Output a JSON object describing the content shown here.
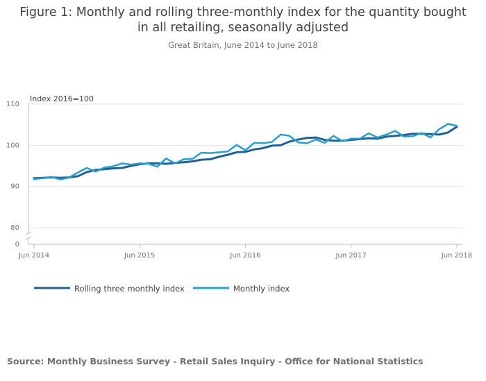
{
  "header": {
    "title_line1": "Figure 1: Monthly and rolling three-monthly index for the quantity bought",
    "title_line2": "in all retailing, seasonally adjusted",
    "subtitle": "Great Britain, June 2014 to June 2018"
  },
  "footer": {
    "source": "Source: Monthly Business Survey - Retail Sales Inquiry - Office for National Statistics"
  },
  "colors": {
    "rolling": "#206095",
    "monthly": "#27a0cc",
    "grid": "#e6e6e6",
    "axis": "#bcbcbd"
  },
  "chart_data": {
    "type": "line",
    "title": "Figure 1: Monthly and rolling three-monthly index for the quantity bought in all retailing, seasonally adjusted",
    "subtitle": "Great Britain, June 2014 to June 2018",
    "ylabel": "Index 2016=100",
    "xlabel": "",
    "ylim": [
      80,
      110
    ],
    "y_ticks": [
      110,
      100,
      90,
      80
    ],
    "y_break_label": "0",
    "x_tick_labels": [
      "Jun 2014",
      "Jun 2015",
      "Jun 2016",
      "Jun 2017",
      "Jun 2018"
    ],
    "legend": [
      "Rolling three monthly index",
      "Monthly index"
    ],
    "legend_position": "bottom-left",
    "x": [
      "Jun 2014",
      "Jul 2014",
      "Aug 2014",
      "Sep 2014",
      "Oct 2014",
      "Nov 2014",
      "Dec 2014",
      "Jan 2015",
      "Feb 2015",
      "Mar 2015",
      "Apr 2015",
      "May 2015",
      "Jun 2015",
      "Jul 2015",
      "Aug 2015",
      "Sep 2015",
      "Oct 2015",
      "Nov 2015",
      "Dec 2015",
      "Jan 2016",
      "Feb 2016",
      "Mar 2016",
      "Apr 2016",
      "May 2016",
      "Jun 2016",
      "Jul 2016",
      "Aug 2016",
      "Sep 2016",
      "Oct 2016",
      "Nov 2016",
      "Dec 2016",
      "Jan 2017",
      "Feb 2017",
      "Mar 2017",
      "Apr 2017",
      "May 2017",
      "Jun 2017",
      "Jul 2017",
      "Aug 2017",
      "Sep 2017",
      "Oct 2017",
      "Nov 2017",
      "Dec 2017",
      "Jan 2018",
      "Feb 2018",
      "Mar 2018",
      "Apr 2018",
      "May 2018",
      "Jun 2018"
    ],
    "series": [
      {
        "name": "Rolling three monthly index",
        "values": [
          92.0,
          92.1,
          92.2,
          92.1,
          92.2,
          92.5,
          93.5,
          94.0,
          94.2,
          94.4,
          94.5,
          95.0,
          95.4,
          95.6,
          95.6,
          95.5,
          95.7,
          95.9,
          96.1,
          96.5,
          96.6,
          97.2,
          97.7,
          98.3,
          98.4,
          99.0,
          99.3,
          99.9,
          100.0,
          100.9,
          101.4,
          101.8,
          101.9,
          101.3,
          101.1,
          101.1,
          101.3,
          101.5,
          101.7,
          101.6,
          102.1,
          102.3,
          102.5,
          102.8,
          102.8,
          102.7,
          102.6,
          103.1,
          104.5
        ]
      },
      {
        "name": "Monthly index",
        "values": [
          91.8,
          92.0,
          92.3,
          91.7,
          92.2,
          93.4,
          94.5,
          93.6,
          94.6,
          94.9,
          95.6,
          95.3,
          95.6,
          95.5,
          94.8,
          96.8,
          95.6,
          96.6,
          96.7,
          98.2,
          98.1,
          98.3,
          98.5,
          100.1,
          98.8,
          100.6,
          100.5,
          100.8,
          102.6,
          102.3,
          100.7,
          100.5,
          101.4,
          100.6,
          102.3,
          101.0,
          101.6,
          101.6,
          102.9,
          101.9,
          102.6,
          103.5,
          102.1,
          102.2,
          103.0,
          101.9,
          103.9,
          105.2,
          104.7
        ]
      }
    ]
  }
}
